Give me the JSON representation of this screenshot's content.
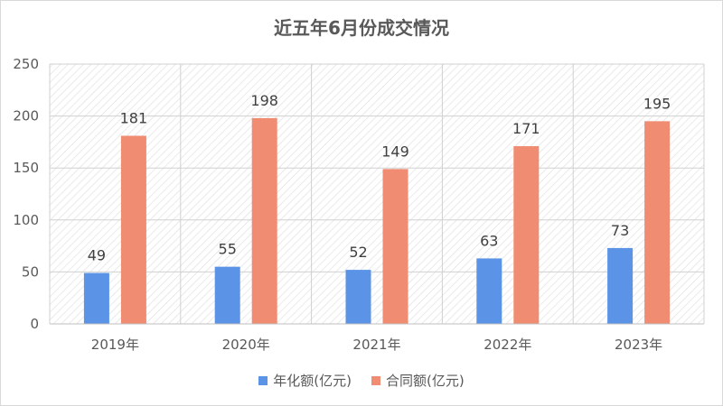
{
  "chart_data": {
    "type": "bar",
    "title": "近五年6月份成交情况",
    "categories": [
      "2019年",
      "2020年",
      "2021年",
      "2022年",
      "2023年"
    ],
    "series": [
      {
        "name": "年化额(亿元)",
        "values": [
          49,
          55,
          52,
          63,
          73
        ],
        "color": "#5b93e6"
      },
      {
        "name": "合同额(亿元)",
        "values": [
          181,
          198,
          149,
          171,
          195
        ],
        "color": "#f08c72"
      }
    ],
    "ylim": [
      0,
      250
    ],
    "yticks": [
      0,
      50,
      100,
      150,
      200,
      250
    ],
    "grid": true,
    "legend": "bottom"
  }
}
